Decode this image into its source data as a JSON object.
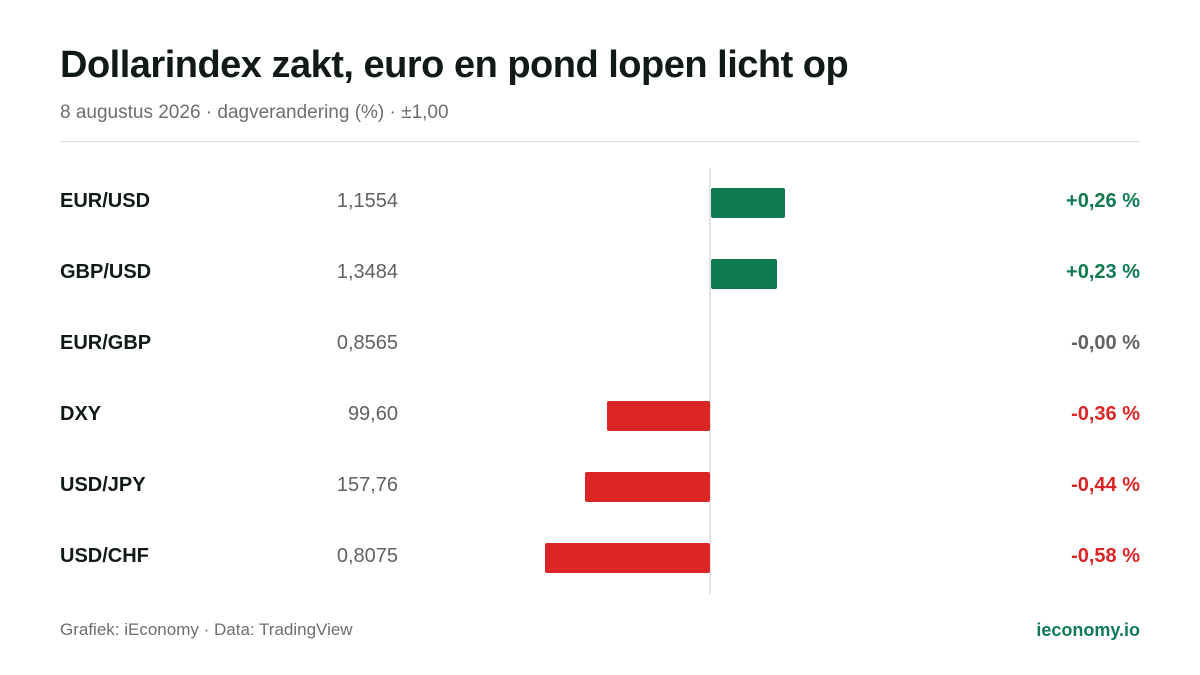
{
  "header": {
    "title": "Dollarindex zakt, euro en pond lopen licht op",
    "subtitle": "8 augustus 2026 · dagverandering (%) · ±1,00"
  },
  "footer": {
    "source": "Grafiek: iEconomy · Data: TradingView",
    "brand": "ieconomy.io"
  },
  "colors": {
    "positive": "#0f7a4f",
    "negative": "#dc2626",
    "neutral": "#5f6361"
  },
  "chart_data": {
    "type": "bar",
    "orientation": "horizontal",
    "categories": [
      "EUR/USD",
      "GBP/USD",
      "EUR/GBP",
      "DXY",
      "USD/JPY",
      "USD/CHF"
    ],
    "rates": [
      "1,1554",
      "1,3484",
      "0,8565",
      "99,60",
      "157,76",
      "0,8075"
    ],
    "values": [
      0.26,
      0.23,
      -0.0,
      -0.36,
      -0.44,
      -0.58
    ],
    "value_labels": [
      "+0,26 %",
      "+0,23 %",
      "-0,00 %",
      "-0,36 %",
      "-0,44 %",
      "-0,58 %"
    ],
    "xlim": [
      -1.0,
      1.0
    ],
    "grid": false
  }
}
